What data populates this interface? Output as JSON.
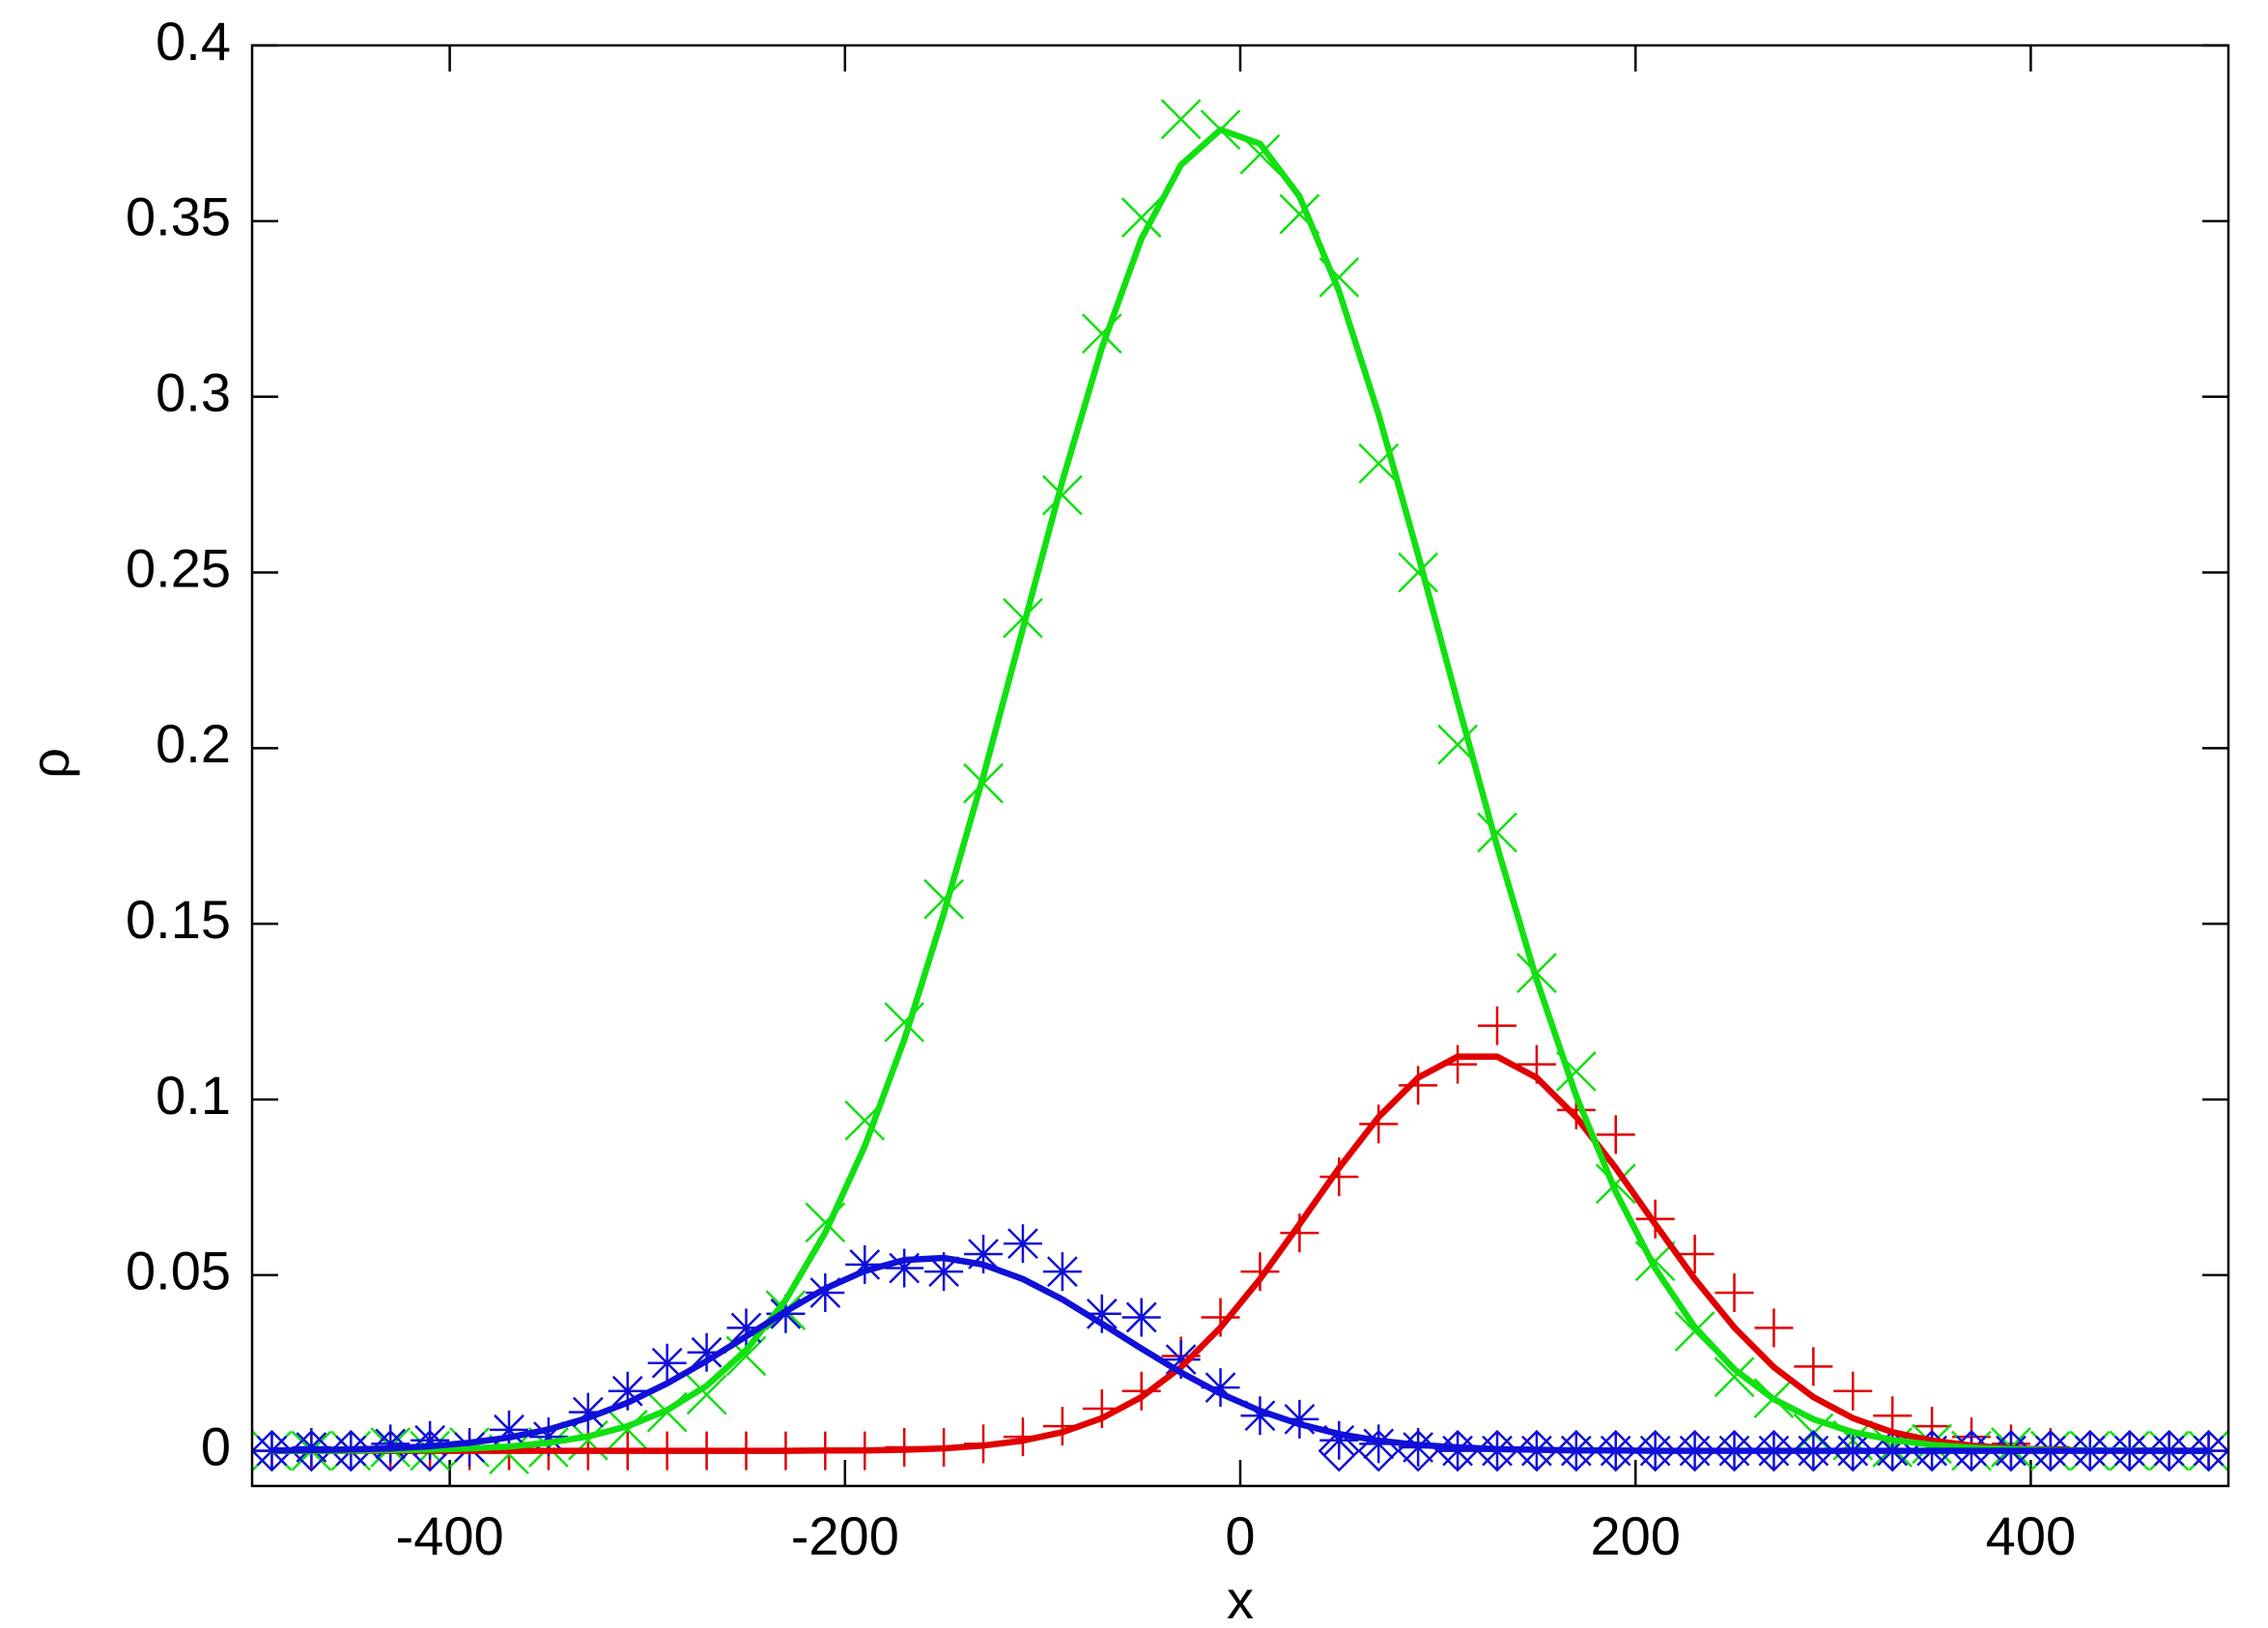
{
  "chart_data": {
    "type": "line",
    "x_label": "x",
    "y_label": "ρ",
    "xlim": [
      -500,
      500
    ],
    "ylim": [
      -0.01,
      0.4
    ],
    "xticks": [
      -400,
      -200,
      0,
      200,
      400
    ],
    "yticks": [
      0,
      0.05,
      0.1,
      0.15,
      0.2,
      0.25,
      0.3,
      0.35,
      0.4
    ],
    "mirror_ticks": true,
    "x": [
      -490,
      -470,
      -450,
      -430,
      -410,
      -390,
      -370,
      -350,
      -330,
      -310,
      -290,
      -270,
      -250,
      -230,
      -210,
      -190,
      -170,
      -150,
      -130,
      -110,
      -90,
      -70,
      -50,
      -30,
      -10,
      10,
      30,
      50,
      70,
      90,
      110,
      130,
      150,
      170,
      190,
      210,
      230,
      250,
      270,
      290,
      310,
      330,
      350,
      370,
      390,
      410,
      430,
      450,
      470,
      490
    ],
    "series": [
      {
        "style": "points",
        "marker": "plus",
        "color": "#e00000",
        "values": [
          0,
          0,
          0,
          0,
          0,
          0,
          0,
          0,
          0,
          0,
          0,
          0,
          0,
          0,
          0,
          0,
          0.001,
          0.001,
          0.002,
          0.004,
          0.007,
          0.012,
          0.017,
          0.027,
          0.038,
          0.051,
          0.062,
          0.078,
          0.093,
          0.104,
          0.11,
          0.121,
          0.11,
          0.097,
          0.09,
          0.066,
          0.056,
          0.045,
          0.035,
          0.024,
          0.017,
          0.01,
          0.007,
          0.004,
          0.002,
          0.001,
          0,
          0,
          0,
          0
        ]
      },
      {
        "style": "points",
        "marker": "cross",
        "color": "#11e011",
        "values": [
          0,
          0,
          0,
          0.001,
          0,
          0.001,
          -0.001,
          0.001,
          0.003,
          0.006,
          0.011,
          0.016,
          0.027,
          0.04,
          0.065,
          0.094,
          0.122,
          0.157,
          0.19,
          0.237,
          0.272,
          0.318,
          0.351,
          0.379,
          0.376,
          0.369,
          0.352,
          0.334,
          0.281,
          0.25,
          0.201,
          0.176,
          0.136,
          0.108,
          0.076,
          0.054,
          0.034,
          0.021,
          0.015,
          0.005,
          0.003,
          0.001,
          0.002,
          0,
          0.001,
          0,
          0,
          0,
          0,
          0
        ]
      },
      {
        "style": "points",
        "marker": "star",
        "color": "#1010d8",
        "values": [
          0,
          0.001,
          0,
          0.002,
          0.003,
          0.001,
          0.006,
          0.004,
          0.011,
          0.017,
          0.025,
          0.028,
          0.035,
          0.039,
          0.045,
          0.053,
          0.052,
          0.051,
          0.056,
          0.059,
          0.051,
          0.039,
          0.038,
          0.026,
          0.018,
          0.01,
          0.009,
          0.003,
          0.002,
          0.001,
          0,
          0,
          0,
          0,
          0,
          0,
          0,
          0,
          0,
          0,
          0,
          0,
          0,
          0,
          0,
          0,
          0,
          0,
          0,
          0
        ]
      },
      {
        "style": "points",
        "marker": "diamond",
        "color": "#1010d8",
        "values": [
          0,
          0,
          0,
          0,
          0,
          null,
          null,
          null,
          null,
          null,
          null,
          null,
          null,
          null,
          null,
          null,
          null,
          null,
          null,
          null,
          null,
          null,
          null,
          null,
          null,
          null,
          null,
          0,
          0,
          0,
          0,
          0,
          0,
          0,
          0,
          0,
          0,
          0,
          0,
          0,
          0,
          0,
          0,
          0,
          0,
          0,
          0,
          0,
          0,
          0
        ]
      },
      {
        "style": "line",
        "color": "#e00000",
        "values": [
          0,
          0,
          0,
          0,
          0,
          0,
          0,
          0,
          0,
          0,
          0,
          0,
          0,
          0,
          0.0001,
          0.0001,
          0.0003,
          0.0007,
          0.0015,
          0.0029,
          0.0053,
          0.0093,
          0.0153,
          0.0238,
          0.0351,
          0.0489,
          0.0645,
          0.0805,
          0.095,
          0.1062,
          0.1122,
          0.1122,
          0.1062,
          0.095,
          0.0805,
          0.0645,
          0.0489,
          0.0351,
          0.0238,
          0.0153,
          0.0093,
          0.0053,
          0.0029,
          0.0015,
          0.0007,
          0.0003,
          0.0001,
          0.0001,
          0,
          0
        ]
      },
      {
        "style": "line",
        "color": "#11e011",
        "values": [
          0,
          0,
          0.0001,
          0.0002,
          0.0003,
          0.0007,
          0.0012,
          0.0023,
          0.0041,
          0.007,
          0.0116,
          0.0185,
          0.0287,
          0.0429,
          0.0621,
          0.0867,
          0.117,
          0.153,
          0.192,
          0.234,
          0.276,
          0.314,
          0.345,
          0.366,
          0.376,
          0.372,
          0.357,
          0.33,
          0.295,
          0.255,
          0.213,
          0.172,
          0.134,
          0.101,
          0.0737,
          0.0519,
          0.0352,
          0.0232,
          0.0147,
          0.009,
          0.0053,
          0.0031,
          0.0017,
          0.0009,
          0.0005,
          0.0002,
          0.0001,
          0.0001,
          0,
          0
        ]
      },
      {
        "style": "line",
        "color": "#1010d8",
        "values": [
          0.0001,
          0.0002,
          0.0004,
          0.0007,
          0.0013,
          0.0023,
          0.0038,
          0.0061,
          0.0094,
          0.0137,
          0.0192,
          0.0256,
          0.0326,
          0.0397,
          0.0462,
          0.0512,
          0.0543,
          0.0549,
          0.053,
          0.0489,
          0.0431,
          0.0362,
          0.0291,
          0.0223,
          0.0163,
          0.0114,
          0.0076,
          0.0048,
          0.0029,
          0.0017,
          0.001,
          0.0005,
          0.0003,
          0.0001,
          0.0001,
          0,
          0,
          0,
          0,
          0,
          0,
          0,
          0,
          0,
          0,
          0,
          0,
          0,
          0,
          0
        ]
      }
    ]
  }
}
